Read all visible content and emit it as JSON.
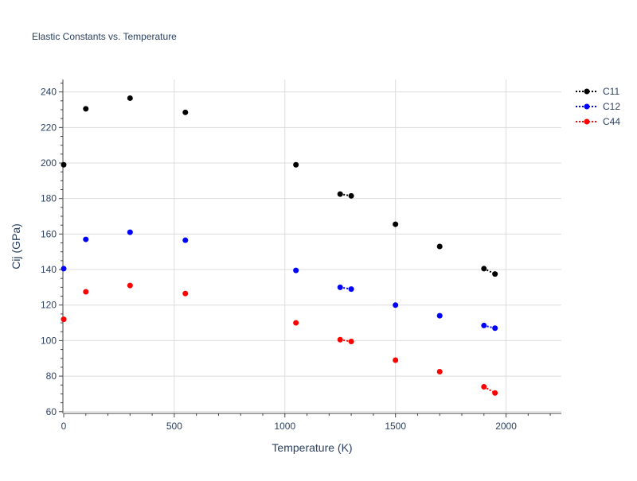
{
  "chart_data": {
    "type": "scatter",
    "title": "Elastic Constants vs. Temperature",
    "xlabel": "Temperature (K)",
    "ylabel": "Cij (GPa)",
    "xlim": [
      0,
      2250
    ],
    "ylim": [
      59,
      247
    ],
    "xticks": [
      0,
      500,
      1000,
      1500,
      2000
    ],
    "yticks": [
      60,
      80,
      100,
      120,
      140,
      160,
      180,
      200,
      220,
      240
    ],
    "grid": true,
    "legend_position": "top-right",
    "series": [
      {
        "name": "C11",
        "color": "#000000",
        "points": [
          [
            0,
            199
          ],
          [
            100,
            230.5
          ],
          [
            300,
            236.5
          ],
          [
            550,
            228.5
          ],
          [
            1050,
            199
          ],
          [
            1250,
            182.5
          ],
          [
            1300,
            181.5
          ],
          [
            1500,
            165.5
          ],
          [
            1700,
            153
          ],
          [
            1900,
            140.5
          ],
          [
            1950,
            137.5
          ]
        ],
        "dotted_segments": [
          [
            5,
            6
          ],
          [
            9,
            10
          ]
        ]
      },
      {
        "name": "C12",
        "color": "#0000ff",
        "points": [
          [
            0,
            140.5
          ],
          [
            100,
            157
          ],
          [
            300,
            161
          ],
          [
            550,
            156.5
          ],
          [
            1050,
            139.5
          ],
          [
            1250,
            130
          ],
          [
            1300,
            129
          ],
          [
            1500,
            120
          ],
          [
            1700,
            114
          ],
          [
            1900,
            108.5
          ],
          [
            1950,
            107
          ]
        ],
        "dotted_segments": [
          [
            5,
            6
          ],
          [
            9,
            10
          ]
        ]
      },
      {
        "name": "C44",
        "color": "#ff0000",
        "points": [
          [
            0,
            112
          ],
          [
            100,
            127.5
          ],
          [
            300,
            131
          ],
          [
            550,
            126.5
          ],
          [
            1050,
            110
          ],
          [
            1250,
            100.5
          ],
          [
            1300,
            99.5
          ],
          [
            1500,
            89
          ],
          [
            1700,
            82.5
          ],
          [
            1900,
            74
          ],
          [
            1950,
            70.5
          ]
        ],
        "dotted_segments": [
          [
            5,
            6
          ],
          [
            9,
            10
          ]
        ]
      }
    ]
  }
}
